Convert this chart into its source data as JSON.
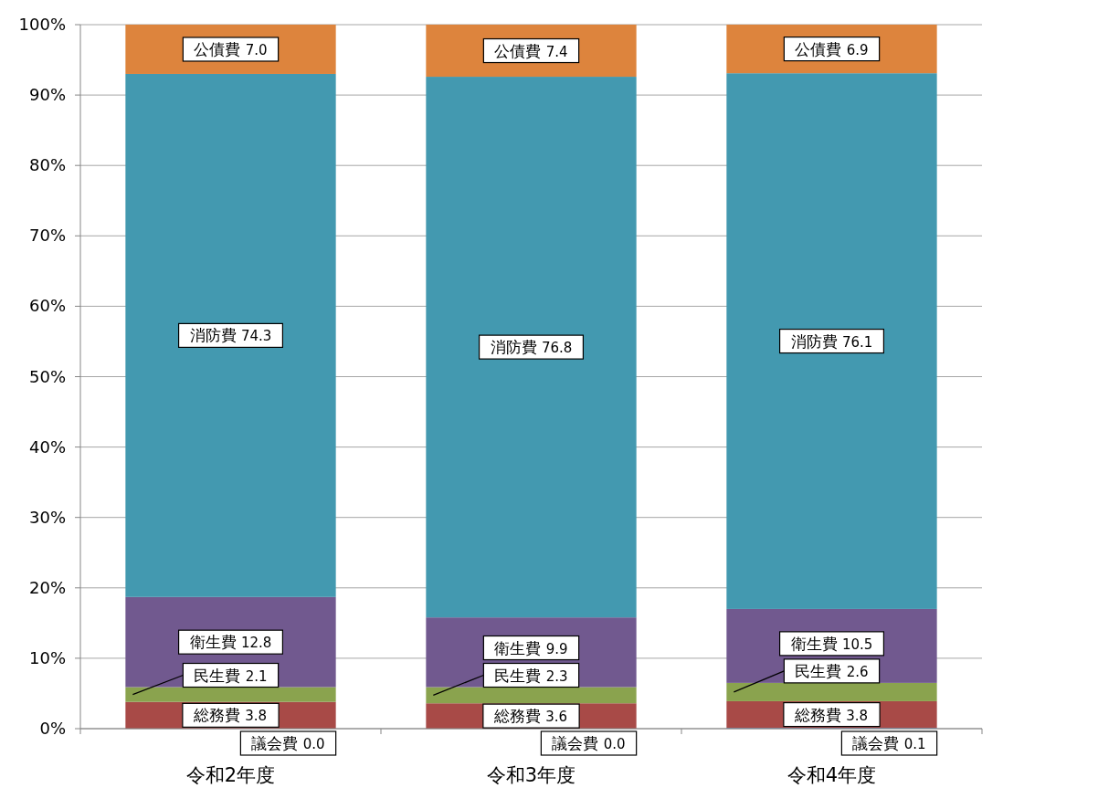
{
  "chart_data": {
    "type": "bar",
    "stacked": true,
    "categories": [
      "令和2年度",
      "令和3年度",
      "令和4年度"
    ],
    "ylim": [
      0,
      100
    ],
    "yticks": [
      {
        "value": 0,
        "label": "0%"
      },
      {
        "value": 10,
        "label": "10%"
      },
      {
        "value": 20,
        "label": "20%"
      },
      {
        "value": 30,
        "label": "30%"
      },
      {
        "value": 40,
        "label": "40%"
      },
      {
        "value": 50,
        "label": "50%"
      },
      {
        "value": 60,
        "label": "60%"
      },
      {
        "value": 70,
        "label": "70%"
      },
      {
        "value": 80,
        "label": "80%"
      },
      {
        "value": 90,
        "label": "90%"
      },
      {
        "value": 100,
        "label": "100%"
      }
    ],
    "grid": "y",
    "legend": false,
    "series": [
      {
        "name": "議会費",
        "color": "#4f7fbd",
        "values": [
          0.0,
          0.0,
          0.1
        ],
        "value_labels": [
          "0.0",
          "0.0",
          "0.1"
        ]
      },
      {
        "name": "総務費",
        "color": "#a84a47",
        "values": [
          3.8,
          3.6,
          3.8
        ],
        "value_labels": [
          "3.8",
          "3.6",
          "3.8"
        ]
      },
      {
        "name": "民生費",
        "color": "#8aa34e",
        "values": [
          2.1,
          2.3,
          2.6
        ],
        "value_labels": [
          "2.1",
          "2.3",
          "2.6"
        ]
      },
      {
        "name": "衛生費",
        "color": "#71598f",
        "values": [
          12.8,
          9.9,
          10.5
        ],
        "value_labels": [
          "12.8",
          "9.9",
          "10.5"
        ]
      },
      {
        "name": "消防費",
        "color": "#4399b0",
        "values": [
          74.3,
          76.8,
          76.1
        ],
        "value_labels": [
          "74.3",
          "76.8",
          "76.1"
        ]
      },
      {
        "name": "公債費",
        "color": "#dd843d",
        "values": [
          7.0,
          7.4,
          6.9
        ],
        "value_labels": [
          "7.0",
          "7.4",
          "6.9"
        ]
      }
    ]
  }
}
